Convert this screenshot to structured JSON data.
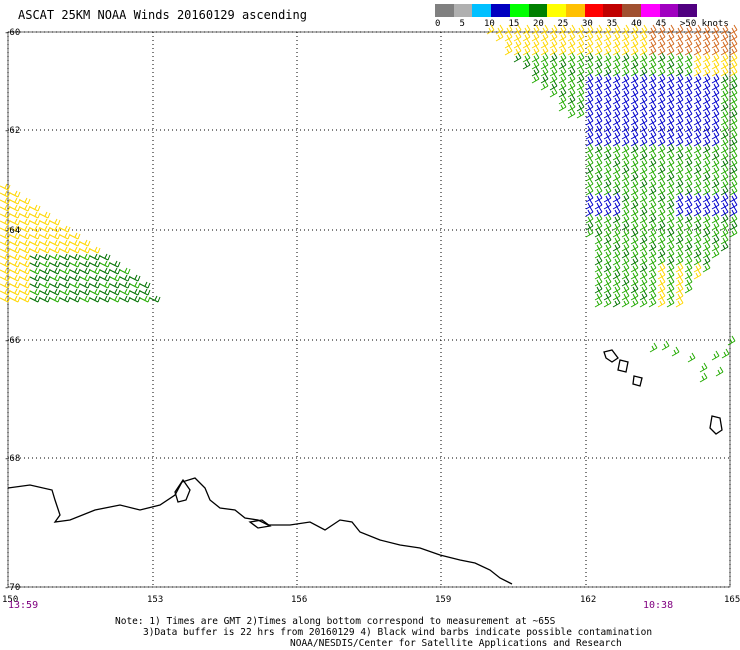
{
  "title": "ASCAT 25KM NOAA Winds 20160129 ascending",
  "legend": {
    "colors": [
      "#808080",
      "#b0b0b0",
      "#00c0ff",
      "#0000c0",
      "#00ff00",
      "#008000",
      "#ffff00",
      "#ffc000",
      "#ff0000",
      "#c00000",
      "#a05030",
      "#ff00ff",
      "#a000c0",
      "#500080"
    ],
    "labels": [
      "0",
      "5",
      "10",
      "15",
      "20",
      "25",
      "30",
      "35",
      "40",
      "45",
      ">50 knots"
    ]
  },
  "y_axis_labels": [
    "-60",
    "-62",
    "-64",
    "-66",
    "-68",
    "-70"
  ],
  "x_axis_labels": [
    "150",
    "153",
    "156",
    "159",
    "162",
    "165"
  ],
  "pass_times": {
    "left": "13:59",
    "right": "10:38"
  },
  "footer": {
    "line1": "Note: 1) Times are GMT 2)Times along bottom correspond to measurement at ~65S",
    "line2": "3)Data buffer is 22 hrs from 20160129 4) Black wind barbs indicate possible contamination",
    "line3": "NOAA/NESDIS/Center for Satellite Applications and Research"
  },
  "colors": {
    "orange": "#d2691e",
    "yellow": "#ffd700",
    "green": "#22aa00",
    "darkgreen": "#007000",
    "blue": "#0000cc",
    "coast": "#000000"
  }
}
